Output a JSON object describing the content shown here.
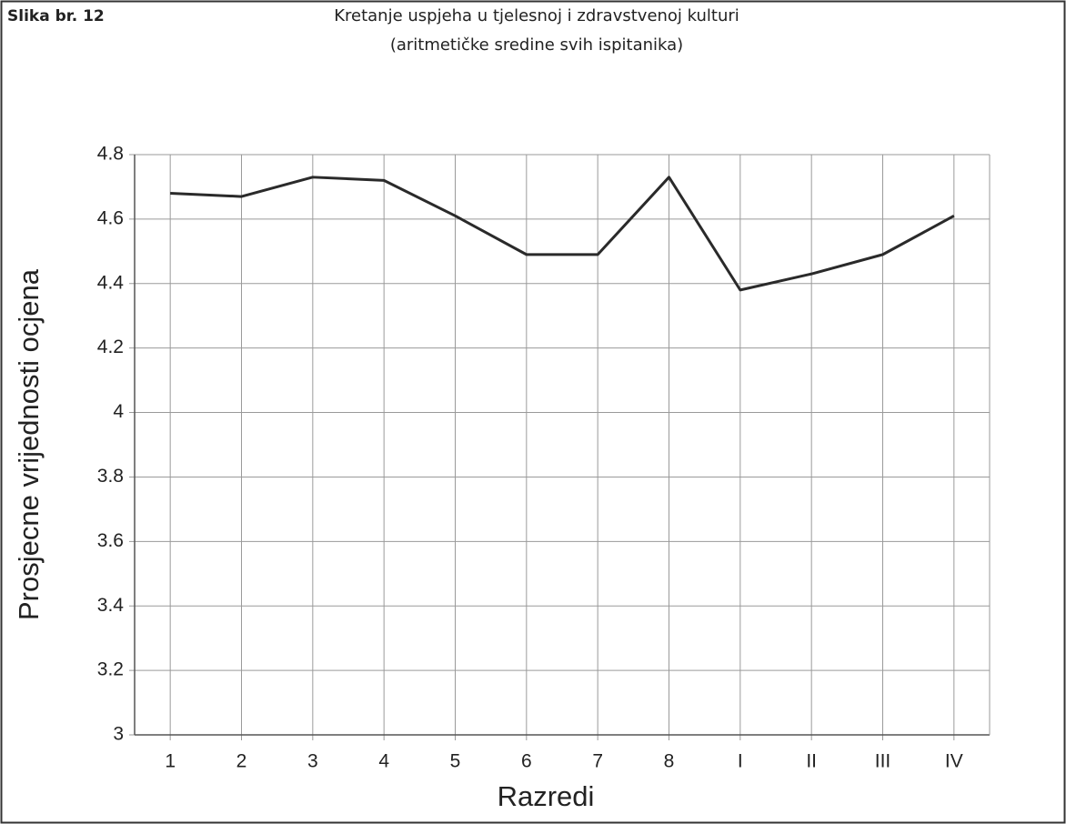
{
  "chart_data": {
    "type": "line",
    "annotation": "Slika br. 12",
    "title": "Kretanje uspjeha u tjelesnoj i zdravstvenoj kulturi",
    "subtitle": "(aritmetičke sredine svih ispitanika)",
    "x_label": "Razredi",
    "y_label": "Prosjecne vrijednosti ocjena",
    "categories": [
      "1",
      "2",
      "3",
      "4",
      "5",
      "6",
      "7",
      "8",
      "I",
      "II",
      "III",
      "IV"
    ],
    "values": [
      4.68,
      4.67,
      4.73,
      4.72,
      4.61,
      4.49,
      4.49,
      4.73,
      4.38,
      4.43,
      4.49,
      4.61
    ],
    "color": "#2a2a2a",
    "ylim": [
      3,
      4.8
    ],
    "yticks": [
      3,
      3.2,
      3.4,
      3.6,
      3.8,
      4,
      4.2,
      4.4,
      4.6,
      4.8
    ],
    "grid": true
  }
}
